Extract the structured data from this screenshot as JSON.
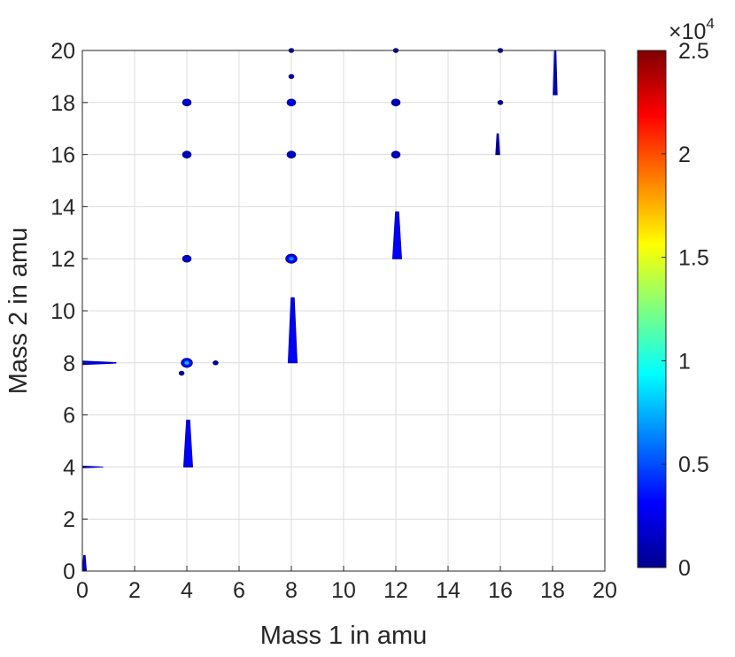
{
  "chart_data": {
    "type": "heatmap",
    "title": "",
    "xlabel": "Mass 1 in amu",
    "ylabel": "Mass 2 in amu",
    "xlim": [
      0,
      20
    ],
    "ylim": [
      0,
      20
    ],
    "xticks": [
      "0",
      "2",
      "4",
      "6",
      "8",
      "10",
      "12",
      "14",
      "16",
      "18",
      "20"
    ],
    "yticks": [
      "0",
      "2",
      "4",
      "6",
      "8",
      "10",
      "12",
      "14",
      "16",
      "18",
      "20"
    ],
    "grid": true,
    "colormap": "jet",
    "colorbar": {
      "range": [
        0,
        25000
      ],
      "ticks": [
        "0",
        "0.5",
        "1",
        "1.5",
        "2",
        "2.5"
      ],
      "exponent_label": "×10",
      "exponent_power": "4"
    },
    "features": [
      {
        "kind": "spot",
        "x": 4,
        "y": 18,
        "value": 2000
      },
      {
        "kind": "spot",
        "x": 4,
        "y": 16,
        "value": 1500
      },
      {
        "kind": "spot",
        "x": 4,
        "y": 12,
        "value": 2000
      },
      {
        "kind": "spot",
        "x": 4,
        "y": 8,
        "value": 3500
      },
      {
        "kind": "spot",
        "x": 8,
        "y": 18,
        "value": 2500
      },
      {
        "kind": "spot",
        "x": 8,
        "y": 16,
        "value": 2000
      },
      {
        "kind": "spot",
        "x": 8,
        "y": 12,
        "value": 3000
      },
      {
        "kind": "spot",
        "x": 12,
        "y": 18,
        "value": 1500
      },
      {
        "kind": "spot",
        "x": 12,
        "y": 16,
        "value": 1500
      },
      {
        "kind": "spot",
        "x": 16,
        "y": 18,
        "value": 1200
      },
      {
        "kind": "spot",
        "x": 8,
        "y": 19,
        "value": 800
      },
      {
        "kind": "spot",
        "x": 8,
        "y": 20,
        "value": 800
      },
      {
        "kind": "spot",
        "x": 12,
        "y": 20,
        "value": 600
      },
      {
        "kind": "spot",
        "x": 16,
        "y": 20,
        "value": 600
      },
      {
        "kind": "spot",
        "x": 5.1,
        "y": 8,
        "value": 800
      },
      {
        "kind": "spot",
        "x": 3.8,
        "y": 7.6,
        "value": 800
      },
      {
        "kind": "streak",
        "x": 4.05,
        "y_from": 4.0,
        "y_to": 5.8,
        "value": 3000
      },
      {
        "kind": "streak",
        "x": 8.05,
        "y_from": 8.0,
        "y_to": 10.5,
        "value": 3000
      },
      {
        "kind": "streak",
        "x": 12.05,
        "y_from": 12.0,
        "y_to": 13.8,
        "value": 3000
      },
      {
        "kind": "streak",
        "x": 18.1,
        "y_from": 18.3,
        "y_to": 20,
        "value": 1500
      },
      {
        "kind": "streak",
        "x": 15.9,
        "y_from": 16.0,
        "y_to": 16.8,
        "value": 800
      },
      {
        "kind": "hline",
        "y": 8,
        "x_from": 0,
        "x_to": 1.3,
        "value": 2000
      },
      {
        "kind": "hline",
        "y": 4,
        "x_from": 0,
        "x_to": 0.8,
        "value": 1500
      },
      {
        "kind": "streak",
        "x": 0.08,
        "y_from": 0,
        "y_to": 0.6,
        "value": 1500
      }
    ]
  }
}
